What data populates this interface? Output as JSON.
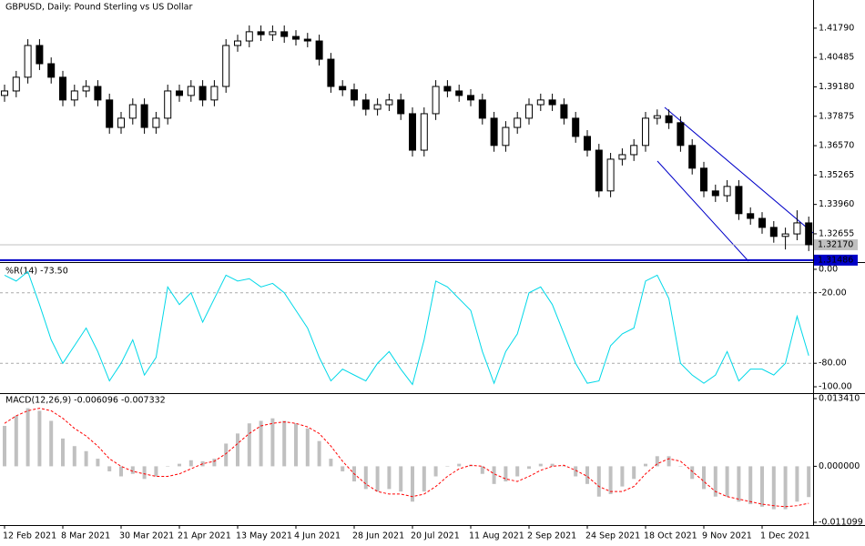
{
  "chart_data": [
    {
      "type": "candlestick",
      "title": "GBPUSD, Daily:  Pound Sterling vs US Dollar",
      "categories": [
        "12 Feb 2021",
        null,
        null,
        null,
        null,
        "8 Mar 2021",
        null,
        null,
        null,
        null,
        "30 Mar 2021",
        null,
        null,
        null,
        null,
        "21 Apr 2021",
        null,
        null,
        null,
        null,
        "13 May 2021",
        null,
        null,
        null,
        null,
        "4 Jun 2021",
        null,
        null,
        null,
        null,
        "28 Jun 2021",
        null,
        null,
        null,
        null,
        "20 Jul 2021",
        null,
        null,
        null,
        null,
        "11 Aug 2021",
        null,
        null,
        null,
        null,
        "2 Sep 2021",
        null,
        null,
        null,
        null,
        "24 Sep 2021",
        null,
        null,
        null,
        null,
        "18 Oct 2021",
        null,
        null,
        null,
        null,
        "9 Nov 2021",
        null,
        null,
        null,
        null,
        "1 Dec 2021",
        null,
        null,
        null,
        null
      ],
      "open": [
        1.388,
        1.39,
        1.3961,
        1.4102,
        1.4021,
        1.3961,
        1.386,
        1.39,
        1.392,
        1.386,
        1.3738,
        1.3779,
        1.3839,
        1.3738,
        1.3779,
        1.39,
        1.388,
        1.392,
        1.386,
        1.392,
        1.4102,
        1.4122,
        1.4163,
        1.415,
        1.4163,
        1.4142,
        1.413,
        1.4122,
        1.4041,
        1.392,
        1.3905,
        1.386,
        1.3819,
        1.3839,
        1.386,
        1.3799,
        1.3637,
        1.3799,
        1.392,
        1.39,
        1.388,
        1.386,
        1.3779,
        1.3658,
        1.3738,
        1.3779,
        1.3839,
        1.386,
        1.3839,
        1.3779,
        1.3698,
        1.3637,
        1.3456,
        1.3597,
        1.3617,
        1.3658,
        1.3779,
        1.379,
        1.3759,
        1.3658,
        1.3557,
        1.3456,
        1.3435,
        1.3476,
        1.3355,
        1.3334,
        1.3294,
        1.3254,
        1.3265,
        1.3314
      ],
      "high": [
        1.3928,
        1.3989,
        1.413,
        1.413,
        1.4049,
        1.3989,
        1.3928,
        1.3948,
        1.3948,
        1.3888,
        1.3807,
        1.3867,
        1.3867,
        1.3807,
        1.3928,
        1.3928,
        1.3948,
        1.3948,
        1.3948,
        1.413,
        1.415,
        1.4191,
        1.4191,
        1.4191,
        1.4191,
        1.417,
        1.4158,
        1.415,
        1.4069,
        1.3948,
        1.3933,
        1.3888,
        1.3867,
        1.3888,
        1.3888,
        1.3827,
        1.3827,
        1.3948,
        1.3948,
        1.3928,
        1.3908,
        1.3888,
        1.3807,
        1.3766,
        1.3807,
        1.3867,
        1.3888,
        1.3888,
        1.3867,
        1.3807,
        1.3726,
        1.3665,
        1.3625,
        1.3645,
        1.3686,
        1.3807,
        1.3818,
        1.3818,
        1.3787,
        1.3686,
        1.3585,
        1.3484,
        1.3504,
        1.3504,
        1.3383,
        1.3362,
        1.3322,
        1.3293,
        1.337,
        1.3342
      ],
      "low": [
        1.3852,
        1.3872,
        1.3933,
        1.3993,
        1.3933,
        1.3832,
        1.3832,
        1.3872,
        1.3832,
        1.371,
        1.371,
        1.3751,
        1.371,
        1.371,
        1.3751,
        1.3852,
        1.3852,
        1.3832,
        1.3832,
        1.3892,
        1.4074,
        1.4094,
        1.4122,
        1.4122,
        1.4114,
        1.4102,
        1.4094,
        1.4013,
        1.3892,
        1.3877,
        1.3832,
        1.3791,
        1.3791,
        1.3811,
        1.3771,
        1.3609,
        1.3609,
        1.3771,
        1.3872,
        1.3852,
        1.3832,
        1.3751,
        1.363,
        1.363,
        1.371,
        1.3751,
        1.3811,
        1.3811,
        1.3751,
        1.367,
        1.3609,
        1.3428,
        1.3428,
        1.3569,
        1.3589,
        1.363,
        1.3751,
        1.3731,
        1.363,
        1.3529,
        1.3428,
        1.3407,
        1.3407,
        1.3327,
        1.3306,
        1.3266,
        1.3226,
        1.3196,
        1.3237,
        1.3189
      ],
      "close": [
        1.39,
        1.3961,
        1.4102,
        1.4021,
        1.3961,
        1.386,
        1.39,
        1.392,
        1.386,
        1.3738,
        1.3779,
        1.3839,
        1.3738,
        1.3779,
        1.39,
        1.388,
        1.392,
        1.386,
        1.392,
        1.4102,
        1.4122,
        1.4163,
        1.415,
        1.4163,
        1.4142,
        1.413,
        1.4122,
        1.4041,
        1.392,
        1.3905,
        1.386,
        1.3819,
        1.3839,
        1.386,
        1.3799,
        1.3637,
        1.3799,
        1.392,
        1.39,
        1.388,
        1.386,
        1.3779,
        1.3658,
        1.3738,
        1.3779,
        1.3839,
        1.386,
        1.3839,
        1.3779,
        1.3698,
        1.3637,
        1.3456,
        1.3597,
        1.3617,
        1.3658,
        1.3779,
        1.379,
        1.3759,
        1.3658,
        1.3557,
        1.3456,
        1.3435,
        1.3476,
        1.3355,
        1.3334,
        1.3294,
        1.3254,
        1.3265,
        1.3314,
        1.3217
      ],
      "ylim": [
        1.3144,
        1.4304
      ],
      "yticks": [
        {
          "value": 1.4179,
          "label": "1.41790"
        },
        {
          "value": 1.40485,
          "label": "1.40485"
        },
        {
          "value": 1.3918,
          "label": "1.39180"
        },
        {
          "value": 1.37875,
          "label": "1.37875"
        },
        {
          "value": 1.3657,
          "label": "1.36570"
        },
        {
          "value": 1.35265,
          "label": "1.35265"
        },
        {
          "value": 1.3396,
          "label": "1.33960"
        },
        {
          "value": 1.32655,
          "label": "1.32655"
        }
      ],
      "price_labels": [
        {
          "value": 1.3217,
          "label": "1.32170",
          "color": "#c0c0c0"
        },
        {
          "value": 1.31486,
          "label": "1.31486",
          "color": "#0000c8"
        }
      ]
    },
    {
      "type": "line",
      "title": "%R(14) -73.50",
      "color": "#00d8e8",
      "values": [
        -5,
        -10,
        -2,
        -30,
        -60,
        -80,
        -65,
        -50,
        -70,
        -95,
        -80,
        -60,
        -90,
        -75,
        -15,
        -30,
        -20,
        -45,
        -25,
        -5,
        -10,
        -8,
        -15,
        -12,
        -20,
        -35,
        -50,
        -75,
        -95,
        -85,
        -90,
        -95,
        -80,
        -70,
        -85,
        -98,
        -60,
        -10,
        -15,
        -25,
        -35,
        -70,
        -97,
        -70,
        -55,
        -20,
        -15,
        -30,
        -55,
        -80,
        -97,
        -95,
        -65,
        -55,
        -50,
        -10,
        -5,
        -25,
        -80,
        -90,
        -97,
        -90,
        -70,
        -95,
        -85,
        -85,
        -90,
        -80,
        -40,
        -73.5
      ],
      "ylim": [
        -105.4,
        4.6
      ],
      "yticks": [
        {
          "value": 0,
          "label": "0.00"
        },
        {
          "value": -20,
          "label": "-20.00"
        },
        {
          "value": -80,
          "label": "-80.00"
        },
        {
          "value": -100,
          "label": "-100.00"
        }
      ]
    },
    {
      "type": "macd",
      "title": "MACD(12,26,9) -0.006096 -0.007332",
      "color": "#c0c0c0",
      "signal_color": "#ff0000",
      "values": [
        0.008,
        0.01,
        0.0115,
        0.011,
        0.009,
        0.0055,
        0.004,
        0.003,
        0.0015,
        -0.001,
        -0.002,
        -0.0015,
        -0.0025,
        -0.002,
        0,
        0.0005,
        0.0012,
        0.001,
        0.0015,
        0.0045,
        0.0065,
        0.0085,
        0.009,
        0.0095,
        0.009,
        0.0085,
        0.0075,
        0.005,
        0.0015,
        -0.001,
        -0.003,
        -0.0045,
        -0.005,
        -0.0045,
        -0.005,
        -0.007,
        -0.005,
        -0.002,
        0,
        0.0005,
        0.0003,
        -0.0015,
        -0.0035,
        -0.003,
        -0.002,
        -0.0005,
        0.0005,
        0.0005,
        0,
        -0.002,
        -0.0035,
        -0.006,
        -0.0055,
        -0.004,
        -0.0025,
        0.0005,
        0.002,
        0.002,
        0,
        -0.0025,
        -0.0045,
        -0.006,
        -0.006,
        -0.007,
        -0.0075,
        -0.008,
        -0.0085,
        -0.0085,
        -0.007,
        -0.006096
      ],
      "signal": [
        0.0085,
        0.01,
        0.011,
        0.0115,
        0.011,
        0.0095,
        0.0075,
        0.006,
        0.004,
        0.0015,
        0,
        -0.001,
        -0.0015,
        -0.002,
        -0.002,
        -0.0015,
        -0.0005,
        0.0005,
        0.001,
        0.0025,
        0.0045,
        0.0065,
        0.008,
        0.0085,
        0.0088,
        0.0085,
        0.0078,
        0.0065,
        0.004,
        0.001,
        -0.0015,
        -0.0035,
        -0.005,
        -0.0055,
        -0.0055,
        -0.006,
        -0.0055,
        -0.004,
        -0.002,
        -0.0005,
        0.0002,
        0,
        -0.0015,
        -0.0025,
        -0.003,
        -0.002,
        -0.0008,
        0,
        0.0002,
        -0.0008,
        -0.002,
        -0.004,
        -0.005,
        -0.005,
        -0.004,
        -0.0015,
        0.0005,
        0.0015,
        0.001,
        -0.001,
        -0.003,
        -0.005,
        -0.006,
        -0.0065,
        -0.007,
        -0.0075,
        -0.0078,
        -0.008,
        -0.0078,
        -0.007332
      ],
      "ylim": [
        -0.01164,
        0.01413
      ],
      "yticks": [
        {
          "value": 0.01341,
          "label": "0.013410"
        },
        {
          "value": 0,
          "label": "0.000000"
        },
        {
          "value": -0.011099,
          "label": "-0.011099"
        }
      ]
    }
  ]
}
